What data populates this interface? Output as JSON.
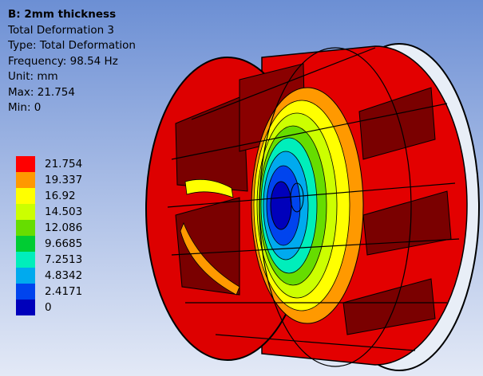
{
  "info": {
    "title": "B: 2mm thickness",
    "result_name": "Total Deformation 3",
    "type": "Type: Total Deformation",
    "frequency": "Frequency: 98.54 Hz",
    "unit": "Unit: mm",
    "max": "Max: 21.754",
    "min": "Min: 0"
  },
  "legend": {
    "labels": [
      "21.754",
      "19.337",
      "16.92",
      "14.503",
      "12.086",
      "9.6685",
      "7.2513",
      "4.8342",
      "2.4171",
      "0"
    ],
    "colors": [
      "#ff0000",
      "#ff9900",
      "#ffff00",
      "#ccff00",
      "#66dd00",
      "#00cc33",
      "#00eebb",
      "#00aaee",
      "#0044ee",
      "#0000bb"
    ]
  },
  "model": {
    "name": "impeller-cylinder",
    "base_color": "#e30000",
    "shadow_color": "#7a0000"
  }
}
